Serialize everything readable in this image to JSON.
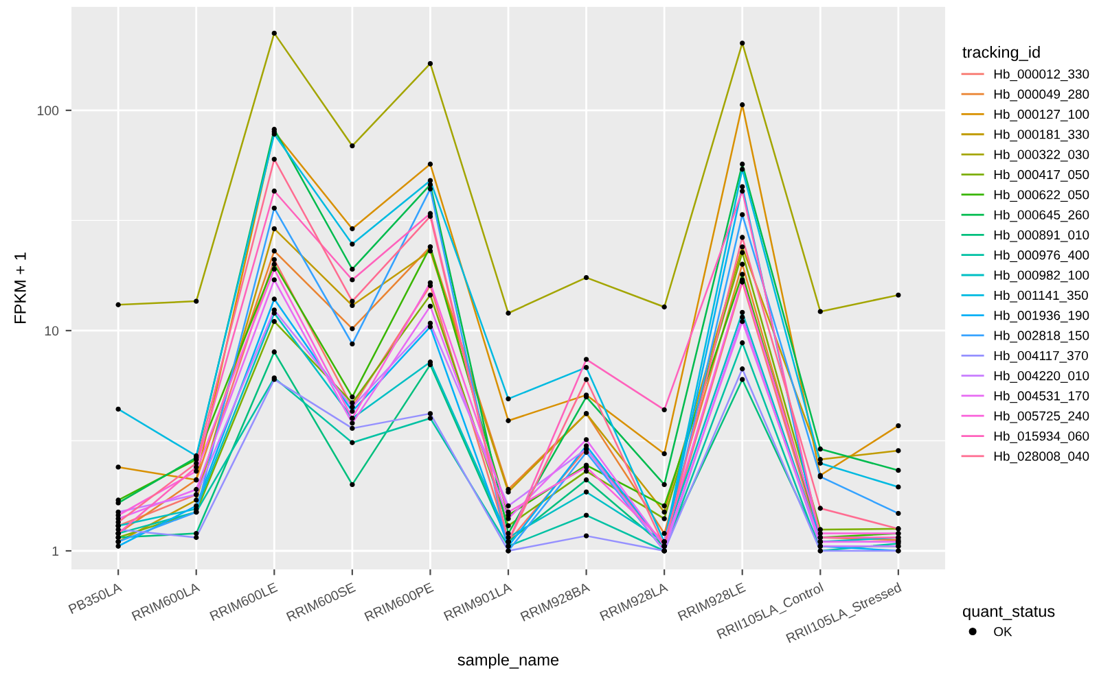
{
  "chart_data": {
    "type": "line",
    "xlabel": "sample_name",
    "ylabel": "FPKM + 1",
    "legend_title": [
      "tracking_id",
      "quant_status"
    ],
    "log": true,
    "ylim": [
      0.824,
      295
    ],
    "yticks": [
      1,
      {
        "value": 3.162,
        "label": null
      },
      10,
      {
        "value": 31.62,
        "label": null
      },
      100
    ],
    "grid": true,
    "legend": "right",
    "categories": [
      "PB350LA",
      "RRIM600LA",
      "RRIM600LE",
      "RRIM600SE",
      "RRIM600PE",
      "RRIM901LA",
      "RRIM928BA",
      "RRIM928LA",
      "RRIM928LE",
      "RRII105LA_Control",
      "RRII105LA_Stressed"
    ],
    "series": [
      {
        "name": "Hb_000012_330",
        "color": "#F8766D",
        "values": [
          1.3,
          1.8,
          21,
          4.5,
          16,
          1.1,
          2.9,
          1.05,
          16.6,
          1.1,
          1.1
        ]
      },
      {
        "name": "Hb_000049_280",
        "color": "#EA8331",
        "values": [
          1.2,
          2.1,
          23,
          10.2,
          24,
          1.9,
          4.2,
          1.2,
          20,
          1.15,
          1.12
        ]
      },
      {
        "name": "Hb_000127_100",
        "color": "#D89000",
        "values": [
          2.4,
          2.1,
          80,
          29,
          57,
          3.9,
          5.1,
          2.76,
          106,
          2.2,
          3.7
        ]
      },
      {
        "name": "Hb_000181_330",
        "color": "#C09B00",
        "values": [
          1.1,
          1.7,
          29,
          13,
          23,
          1.85,
          4.2,
          1.5,
          24,
          2.6,
          2.85
        ]
      },
      {
        "name": "Hb_000322_030",
        "color": "#A3A500",
        "values": [
          13.1,
          13.6,
          224,
          69,
          163,
          12.0,
          17.4,
          12.8,
          202,
          12.2,
          14.5
        ]
      },
      {
        "name": "Hb_000417_050",
        "color": "#7CAE00",
        "values": [
          1.15,
          1.5,
          11,
          4.7,
          14.5,
          1.3,
          2.3,
          1.4,
          22.6,
          1.25,
          1.26
        ]
      },
      {
        "name": "Hb_000622_050",
        "color": "#39B600",
        "values": [
          1.7,
          2.6,
          20,
          5.0,
          24,
          1.45,
          2.45,
          1.6,
          18,
          1.15,
          1.2
        ]
      },
      {
        "name": "Hb_000645_260",
        "color": "#00BB4E",
        "values": [
          1.65,
          2.65,
          82,
          19,
          46,
          1.2,
          5.0,
          2.0,
          57,
          2.9,
          2.32
        ]
      },
      {
        "name": "Hb_000891_010",
        "color": "#00BF7D",
        "values": [
          1.15,
          1.2,
          8.0,
          2.0,
          7.0,
          1.1,
          2.1,
          1.05,
          6.0,
          1.05,
          1.05
        ]
      },
      {
        "name": "Hb_000976_400",
        "color": "#00C1A3",
        "values": [
          1.2,
          1.5,
          6.1,
          3.1,
          4.0,
          1.05,
          1.45,
          1.0,
          8.8,
          1.0,
          1.08
        ]
      },
      {
        "name": "Hb_000982_100",
        "color": "#00BFC4",
        "values": [
          1.3,
          1.55,
          12,
          4.0,
          7.2,
          1.15,
          1.85,
          1.1,
          12.1,
          1.1,
          1.15
        ]
      },
      {
        "name": "Hb_001141_350",
        "color": "#00BAE0",
        "values": [
          4.4,
          2.7,
          78,
          24.7,
          48,
          4.9,
          6.8,
          1.1,
          54,
          2.5,
          1.95
        ]
      },
      {
        "name": "Hb_001936_190",
        "color": "#00B0F6",
        "values": [
          1.05,
          1.6,
          13.9,
          4.3,
          10.4,
          1.05,
          3.0,
          1.05,
          45,
          1.05,
          1.0
        ]
      },
      {
        "name": "Hb_002818_150",
        "color": "#35A2FF",
        "values": [
          1.1,
          1.5,
          36,
          8.7,
          44,
          1.0,
          2.8,
          1.0,
          33.6,
          2.17,
          1.48
        ]
      },
      {
        "name": "Hb_004117_370",
        "color": "#9590FF",
        "values": [
          1.25,
          1.15,
          6.0,
          3.6,
          4.2,
          1.0,
          1.17,
          1.0,
          6.7,
          1.0,
          1.0
        ]
      },
      {
        "name": "Hb_004220_010",
        "color": "#C77CFF",
        "values": [
          1.5,
          1.8,
          12.4,
          4.5,
          10.8,
          1.6,
          2.9,
          1.0,
          11.5,
          1.05,
          1.05
        ]
      },
      {
        "name": "Hb_004531_170",
        "color": "#E76BF3",
        "values": [
          1.4,
          1.9,
          17,
          3.8,
          12.9,
          1.4,
          3.2,
          1.05,
          11,
          1.1,
          1.1
        ]
      },
      {
        "name": "Hb_005725_240",
        "color": "#FA62DB",
        "values": [
          1.45,
          2.3,
          19,
          4.0,
          16.5,
          1.5,
          2.4,
          1.1,
          17,
          1.2,
          1.2
        ]
      },
      {
        "name": "Hb_015934_060",
        "color": "#FF62BC",
        "values": [
          1.2,
          2.4,
          43,
          17,
          34,
          1.1,
          7.4,
          4.37,
          43,
          1.15,
          1.15
        ]
      },
      {
        "name": "Hb_028008_040",
        "color": "#FF6C91",
        "values": [
          1.35,
          2.5,
          60,
          13.6,
          33,
          1.1,
          6.0,
          1.05,
          26.5,
          1.56,
          1.26
        ]
      },
      {
        "name": "OK",
        "type": "scatter",
        "color": "#000000",
        "marker": "circle",
        "x": [
          "PB350LA",
          "RRIM600LA",
          "RRIM600LE",
          "RRIM600SE",
          "RRIM600PE",
          "RRIM901LA",
          "RRIM928BA",
          "RRIM928LA",
          "RRIM928LE",
          "RRII105LA_Control",
          "RRII105LA_Stressed",
          "PB350LA",
          "RRIM600LA",
          "RRIM600LE",
          "RRIM600SE",
          "RRIM600PE",
          "RRIM901LA",
          "RRIM928BA",
          "RRIM928LA",
          "RRIM928LE",
          "RRII105LA_Control",
          "RRII105LA_Stressed",
          "PB350LA",
          "RRIM600LA",
          "RRIM600LE",
          "RRIM600SE",
          "RRIM600PE",
          "RRIM901LA",
          "RRIM928BA",
          "RRIM928LA",
          "RRIM928LE",
          "RRII105LA_Control",
          "RRII105LA_Stressed",
          "PB350LA",
          "RRIM600LA",
          "RRIM600LE",
          "RRIM600SE",
          "RRIM600PE",
          "RRIM901LA",
          "RRIM928BA",
          "RRIM928LA",
          "RRIM928LE",
          "RRII105LA_Control",
          "RRII105LA_Stressed",
          "PB350LA",
          "RRIM600LA",
          "RRIM600LE",
          "RRIM600SE",
          "RRIM600PE",
          "RRIM901LA",
          "RRIM928BA",
          "RRIM928LA",
          "RRIM928LE",
          "RRII105LA_Control",
          "RRII105LA_Stressed",
          "PB350LA",
          "RRIM600LA",
          "RRIM600LE",
          "RRIM600SE",
          "RRIM600PE",
          "RRIM901LA",
          "RRIM928BA",
          "RRIM928LA",
          "RRIM928LE",
          "RRII105LA_Control",
          "RRII105LA_Stressed",
          "PB350LA",
          "RRIM600LA",
          "RRIM600LE",
          "RRIM600SE",
          "RRIM600PE",
          "RRIM901LA",
          "RRIM928BA",
          "RRIM928LA",
          "RRIM928LE",
          "RRII105LA_Control",
          "RRII105LA_Stressed",
          "PB350LA",
          "RRIM600LA",
          "RRIM600LE",
          "RRIM600SE",
          "RRIM600PE",
          "RRIM901LA",
          "RRIM928BA",
          "RRIM928LA",
          "RRIM928LE",
          "RRII105LA_Control",
          "RRII105LA_Stressed",
          "PB350LA",
          "RRIM600LA",
          "RRIM600LE",
          "RRIM600SE",
          "RRIM600PE",
          "RRIM901LA",
          "RRIM928BA",
          "RRIM928LA",
          "RRIM928LE",
          "RRII105LA_Control",
          "RRII105LA_Stressed",
          "PB350LA",
          "RRIM600LA",
          "RRIM600LE",
          "RRIM600SE",
          "RRIM600PE",
          "RRIM901LA",
          "RRIM928BA",
          "RRIM928LA",
          "RRIM928LE",
          "RRII105LA_Control",
          "RRII105LA_Stressed",
          "PB350LA",
          "RRIM600LA",
          "RRIM600LE",
          "RRIM600SE",
          "RRIM600PE",
          "RRIM901LA",
          "RRIM928BA",
          "RRIM928LA",
          "RRIM928LE",
          "RRII105LA_Control",
          "RRII105LA_Stressed",
          "PB350LA",
          "RRIM600LA",
          "RRIM600LE",
          "RRIM600SE",
          "RRIM600PE",
          "RRIM901LA",
          "RRIM928BA",
          "RRIM928LA",
          "RRIM928LE",
          "RRII105LA_Control",
          "RRII105LA_Stressed",
          "PB350LA",
          "RRIM600LA",
          "RRIM600LE",
          "RRIM600SE",
          "RRIM600PE",
          "RRIM901LA",
          "RRIM928BA",
          "RRIM928LA",
          "RRIM928LE",
          "RRII105LA_Control",
          "RRII105LA_Stressed",
          "PB350LA",
          "RRIM600LA",
          "RRIM600LE",
          "RRIM600SE",
          "RRIM600PE",
          "RRIM901LA",
          "RRIM928BA",
          "RRIM928LA",
          "RRIM928LE",
          "RRII105LA_Control",
          "RRII105LA_Stressed",
          "PB350LA",
          "RRIM600LA",
          "RRIM600LE",
          "RRIM600SE",
          "RRIM600PE",
          "RRIM901LA",
          "RRIM928BA",
          "RRIM928LA",
          "RRIM928LE",
          "RRII105LA_Control",
          "RRII105LA_Stressed",
          "PB350LA",
          "RRIM600LA",
          "RRIM600LE",
          "RRIM600SE",
          "RRIM600PE",
          "RRIM901LA",
          "RRIM928BA",
          "RRIM928LA",
          "RRIM928LE",
          "RRII105LA_Control",
          "RRII105LA_Stressed",
          "PB350LA",
          "RRIM600LA",
          "RRIM600LE",
          "RRIM600SE",
          "RRIM600PE",
          "RRIM901LA",
          "RRIM928BA",
          "RRIM928LA",
          "RRIM928LE",
          "RRII105LA_Control",
          "RRII105LA_Stressed",
          "PB350LA",
          "RRIM600LA",
          "RRIM600LE",
          "RRIM600SE",
          "RRIM600PE",
          "RRIM901LA",
          "RRIM928BA",
          "RRIM928LA",
          "RRIM928LE",
          "RRII105LA_Control",
          "RRII105LA_Stressed",
          "PB350LA",
          "RRIM600LA",
          "RRIM600LE",
          "RRIM600SE",
          "RRIM600PE",
          "RRIM901LA",
          "RRIM928BA",
          "RRIM928LA",
          "RRIM928LE",
          "RRII105LA_Control",
          "RRII105LA_Stressed",
          "PB350LA",
          "RRIM600LA",
          "RRIM600LE",
          "RRIM600SE",
          "RRIM600PE",
          "RRIM901LA",
          "RRIM928BA",
          "RRIM928LA",
          "RRIM928LE",
          "RRII105LA_Control",
          "RRII105LA_Stressed"
        ],
        "values": [
          1.3,
          1.8,
          21,
          4.5,
          16,
          1.1,
          2.9,
          1.05,
          16.6,
          1.1,
          1.1,
          1.2,
          2.1,
          23,
          10.2,
          24,
          1.9,
          4.2,
          1.2,
          20,
          1.15,
          1.12,
          2.4,
          2.1,
          80,
          29,
          57,
          3.9,
          5.1,
          2.76,
          106,
          2.2,
          3.7,
          1.1,
          1.7,
          29,
          13,
          23,
          1.85,
          4.2,
          1.5,
          24,
          2.6,
          2.85,
          13.1,
          13.6,
          224,
          69,
          163,
          12.0,
          17.4,
          12.8,
          202,
          12.2,
          14.5,
          1.15,
          1.5,
          11,
          4.7,
          14.5,
          1.3,
          2.3,
          1.4,
          22.6,
          1.25,
          1.26,
          1.7,
          2.6,
          20,
          5.0,
          24,
          1.45,
          2.45,
          1.6,
          18,
          1.15,
          1.2,
          1.65,
          2.65,
          82,
          19,
          46,
          1.2,
          5.0,
          2.0,
          57,
          2.9,
          2.32,
          1.15,
          1.2,
          8.0,
          2.0,
          7.0,
          1.1,
          2.1,
          1.05,
          6.0,
          1.05,
          1.05,
          1.2,
          1.5,
          6.1,
          3.1,
          4.0,
          1.05,
          1.45,
          1.0,
          8.8,
          1.0,
          1.08,
          1.3,
          1.55,
          12,
          4.0,
          7.2,
          1.15,
          1.85,
          1.1,
          12.1,
          1.1,
          1.15,
          4.4,
          2.7,
          78,
          24.7,
          48,
          4.9,
          6.8,
          1.1,
          54,
          2.5,
          1.95,
          1.05,
          1.6,
          13.9,
          4.3,
          10.4,
          1.05,
          3.0,
          1.05,
          45,
          1.05,
          1.0,
          1.1,
          1.5,
          36,
          8.7,
          44,
          1.0,
          2.8,
          1.0,
          33.6,
          2.17,
          1.48,
          1.25,
          1.15,
          6.0,
          3.6,
          4.2,
          1.0,
          1.17,
          1.0,
          6.7,
          1.0,
          1.0,
          1.5,
          1.8,
          12.4,
          4.5,
          10.8,
          1.6,
          2.9,
          1.0,
          11.5,
          1.05,
          1.05,
          1.4,
          1.9,
          17,
          3.8,
          12.9,
          1.4,
          3.2,
          1.05,
          11,
          1.1,
          1.1,
          1.45,
          2.3,
          19,
          4.0,
          16.5,
          1.5,
          2.4,
          1.1,
          17,
          1.2,
          1.2,
          1.2,
          2.4,
          43,
          17,
          34,
          1.1,
          7.4,
          4.37,
          43,
          1.15,
          1.15,
          1.35,
          2.5,
          60,
          13.6,
          33,
          1.1,
          6.0,
          1.05,
          26.5,
          1.56,
          1.26
        ]
      }
    ]
  }
}
